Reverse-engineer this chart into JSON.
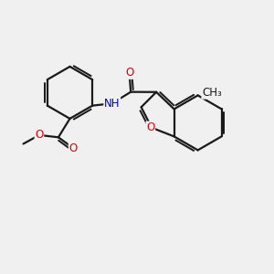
{
  "bg": "#f0f0f0",
  "bc": "#1a1a1a",
  "lw": 1.6,
  "do": 0.09,
  "fs": 8.5,
  "colors": {
    "O": "#dd0000",
    "N": "#0000bb",
    "C": "#1a1a1a"
  }
}
